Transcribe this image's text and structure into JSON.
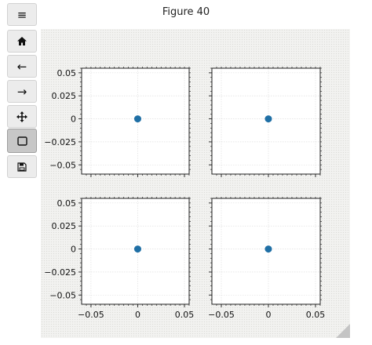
{
  "window": {
    "title": "Figure 40"
  },
  "toolbar": {
    "items": [
      {
        "name": "menu-icon",
        "glyph": "≡"
      },
      {
        "name": "home-icon"
      },
      {
        "name": "back-arrow-icon",
        "glyph": "←"
      },
      {
        "name": "forward-arrow-icon",
        "glyph": "→"
      },
      {
        "name": "pan-move-icon"
      },
      {
        "name": "zoom-rect-icon",
        "active": true
      },
      {
        "name": "save-icon"
      }
    ]
  },
  "colors": {
    "marker": "#1f6fa5",
    "axes_bg": "#ffffff",
    "grid": "#d9d9d9"
  },
  "chart_data": [
    {
      "type": "scatter",
      "subplot": "top-left",
      "x": [
        0
      ],
      "y": [
        0
      ],
      "xlim": [
        -0.06,
        0.055
      ],
      "ylim": [
        -0.06,
        0.055
      ],
      "yticks": [
        "0.05",
        "0.025",
        "0",
        "−0.025",
        "−0.05"
      ],
      "xticks": [],
      "grid": true
    },
    {
      "type": "scatter",
      "subplot": "top-right",
      "x": [
        0
      ],
      "y": [
        0
      ],
      "xlim": [
        -0.06,
        0.055
      ],
      "ylim": [
        -0.06,
        0.055
      ],
      "yticks": [],
      "xticks": [],
      "grid": true
    },
    {
      "type": "scatter",
      "subplot": "bottom-left",
      "x": [
        0
      ],
      "y": [
        0
      ],
      "xlim": [
        -0.06,
        0.055
      ],
      "ylim": [
        -0.06,
        0.055
      ],
      "yticks": [
        "0.05",
        "0.025",
        "0",
        "−0.025",
        "−0.05"
      ],
      "xticks": [
        "−0.05",
        "0",
        "0.05"
      ],
      "grid": true
    },
    {
      "type": "scatter",
      "subplot": "bottom-right",
      "x": [
        0
      ],
      "y": [
        0
      ],
      "xlim": [
        -0.06,
        0.055
      ],
      "ylim": [
        -0.06,
        0.055
      ],
      "yticks": [],
      "xticks": [
        "−0.05",
        "0",
        "0.05"
      ],
      "grid": true
    }
  ]
}
